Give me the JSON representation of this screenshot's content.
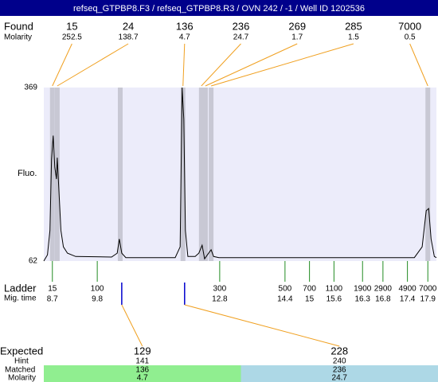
{
  "chart_data": {
    "type": "electropherogram",
    "title": "refseq_GTPBP8.F3 / refseq_GTPBP8.R3 / OVN 242 / -1 / Well ID 1202536",
    "found": {
      "label": "Found",
      "molarity_label": "Molarity",
      "sizes": [
        15,
        24,
        136,
        236,
        269,
        285,
        7000
      ],
      "molarity": [
        252.5,
        138.7,
        4.7,
        24.7,
        1.7,
        1.5,
        0.5
      ],
      "times": [
        8.7,
        8.82,
        11.9,
        12.35,
        12.45,
        12.59,
        17.9
      ]
    },
    "y_label": "Fluo.",
    "ylim": [
      62,
      369
    ],
    "yticks": [
      62,
      369
    ],
    "xlim": [
      8.49,
      18.11
    ],
    "trace": {
      "x": [
        8.49,
        8.58,
        8.64,
        8.68,
        8.72,
        8.76,
        8.8,
        8.82,
        8.86,
        8.91,
        8.97,
        9.07,
        9.27,
        10.15,
        10.29,
        10.34,
        10.4,
        10.5,
        11.71,
        11.83,
        11.88,
        11.92,
        11.96,
        12.02,
        12.2,
        12.29,
        12.37,
        12.43,
        12.53,
        12.59,
        12.65,
        12.78,
        17.57,
        17.76,
        17.86,
        17.92,
        17.98,
        18.06,
        18.11
      ],
      "y": [
        62,
        73,
        116,
        242,
        284,
        228,
        207,
        245,
        186,
        116,
        87,
        76,
        70,
        69,
        76,
        101,
        76,
        68,
        68,
        87,
        369,
        313,
        116,
        70,
        70,
        76,
        90,
        66,
        76,
        82,
        70,
        68,
        68,
        87,
        151,
        155,
        101,
        70,
        68
      ]
    },
    "ladder": {
      "label": "Ladder",
      "time_label": "Mig. time",
      "sizes": [
        15,
        100,
        300,
        500,
        700,
        1100,
        1900,
        2900,
        4900,
        7000
      ],
      "times": [
        8.7,
        9.8,
        12.8,
        14.4,
        15,
        15.6,
        16.3,
        16.8,
        17.4,
        17.9
      ]
    },
    "expected": {
      "label": "Expected",
      "hint_label": "Hint",
      "matched_label": "Matched",
      "molarity_label": "Molarity",
      "sizes": [
        129,
        228
      ],
      "hints": [
        141,
        240
      ],
      "matched": [
        136,
        236
      ],
      "molarity": [
        4.7,
        24.7
      ],
      "times": [
        10.4,
        11.94
      ],
      "colors": [
        "#90ee90",
        "#add8e6"
      ]
    }
  }
}
